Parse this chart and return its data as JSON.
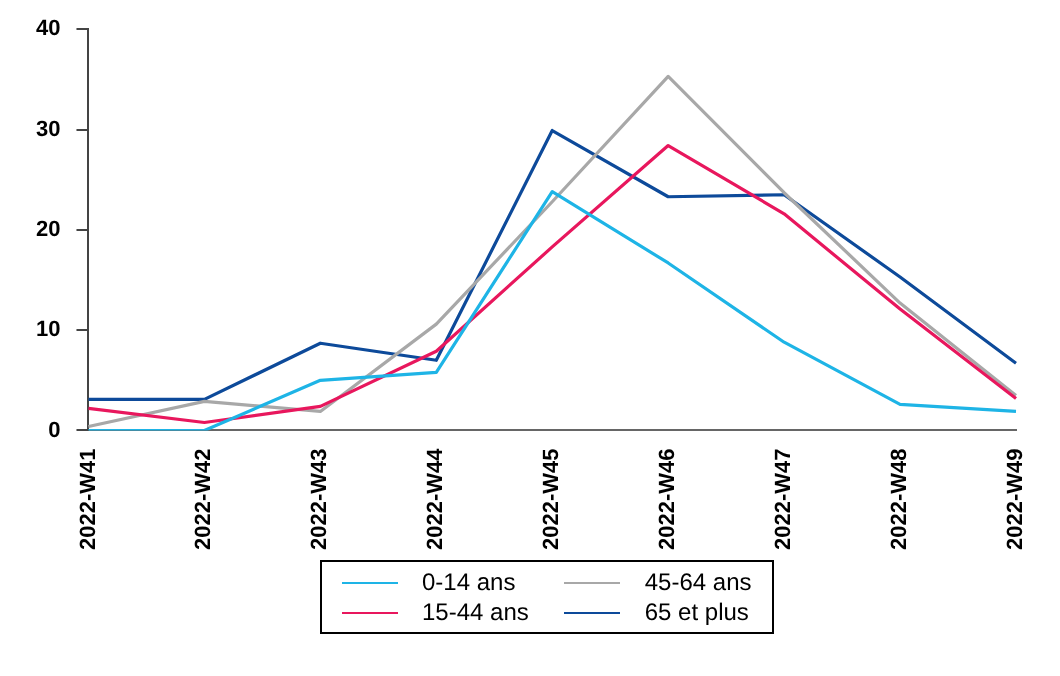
{
  "chart_data": {
    "type": "line",
    "categories": [
      "2022-W41",
      "2022-W42",
      "2022-W43",
      "2022-W44",
      "2022-W45",
      "2022-W46",
      "2022-W47",
      "2022-W48",
      "2022-W49"
    ],
    "series": [
      {
        "name": "0-14 ans",
        "color": "#1eb4e6",
        "values": [
          0,
          0,
          5.0,
          5.8,
          23.8,
          16.7,
          8.8,
          2.6,
          1.9
        ]
      },
      {
        "name": "15-44 ans",
        "color": "#e8175d",
        "values": [
          2.2,
          0.8,
          2.4,
          7.9,
          18.3,
          28.4,
          21.6,
          12.1,
          3.2
        ]
      },
      {
        "name": "45-64 ans",
        "color": "#a8a8a8",
        "values": [
          0.4,
          2.9,
          1.9,
          10.6,
          22.8,
          35.3,
          23.7,
          12.7,
          3.5
        ]
      },
      {
        "name": "65 et plus",
        "color": "#0d4a9a",
        "values": [
          3.1,
          3.1,
          8.7,
          7.0,
          29.9,
          23.3,
          23.5,
          15.3,
          6.7
        ]
      }
    ],
    "ylim": [
      0,
      40
    ],
    "yticks": [
      0,
      10,
      20,
      30,
      40
    ],
    "grid": false,
    "legend": "bottom",
    "marker": "none",
    "line_style": "solid"
  }
}
